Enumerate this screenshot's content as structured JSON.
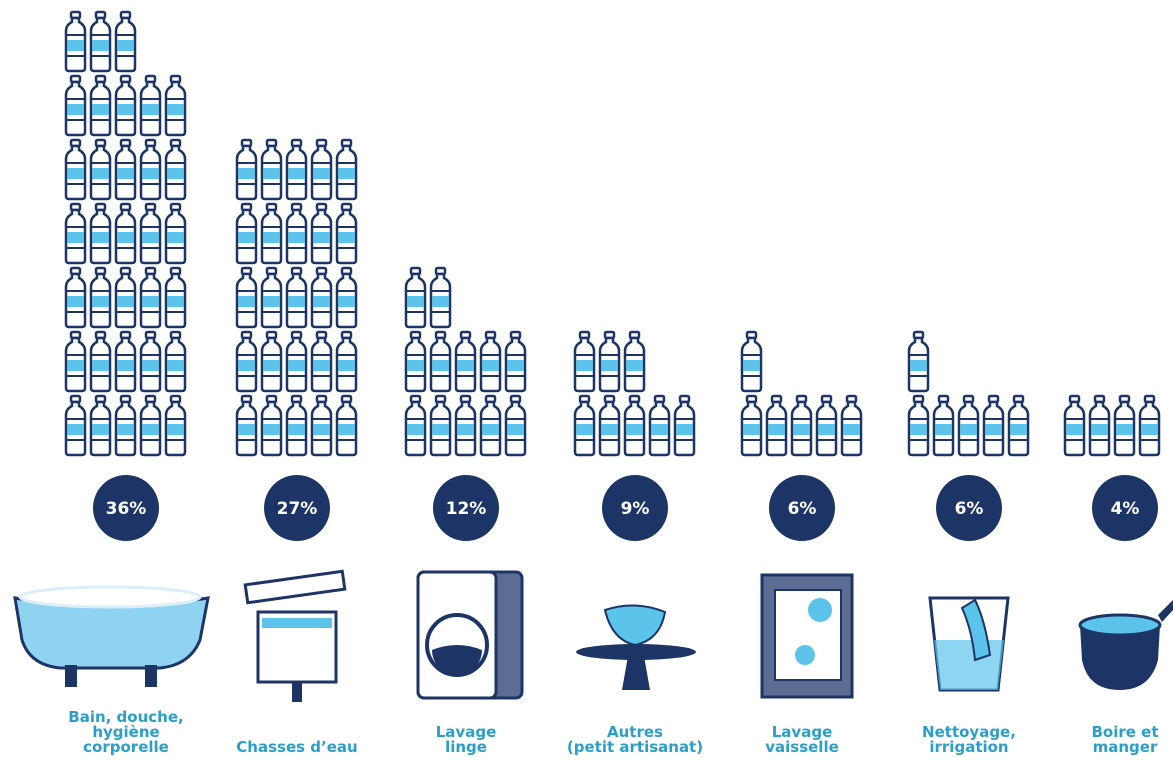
{
  "chart_data": {
    "type": "pictogram",
    "categories": [
      "Bain, douche,\nhygiène\ncorporelle",
      "Chasses d’eau",
      "Lavage\nlinge",
      "Autres\n(petit artisanat)",
      "Lavage\nvaisselle",
      "Nettoyage,\nirrigation",
      "Boire et\nmanger"
    ],
    "values": [
      36,
      27,
      12,
      9,
      6,
      6,
      4
    ],
    "value_labels": [
      "36%",
      "27%",
      "12%",
      "9%",
      "6%",
      "6%",
      "4%"
    ],
    "bottles": [
      33,
      25,
      12,
      8,
      6,
      6,
      4
    ],
    "color": "#1d3566",
    "accent": "#5cc3ea",
    "label_color": "#2a9fc9"
  }
}
